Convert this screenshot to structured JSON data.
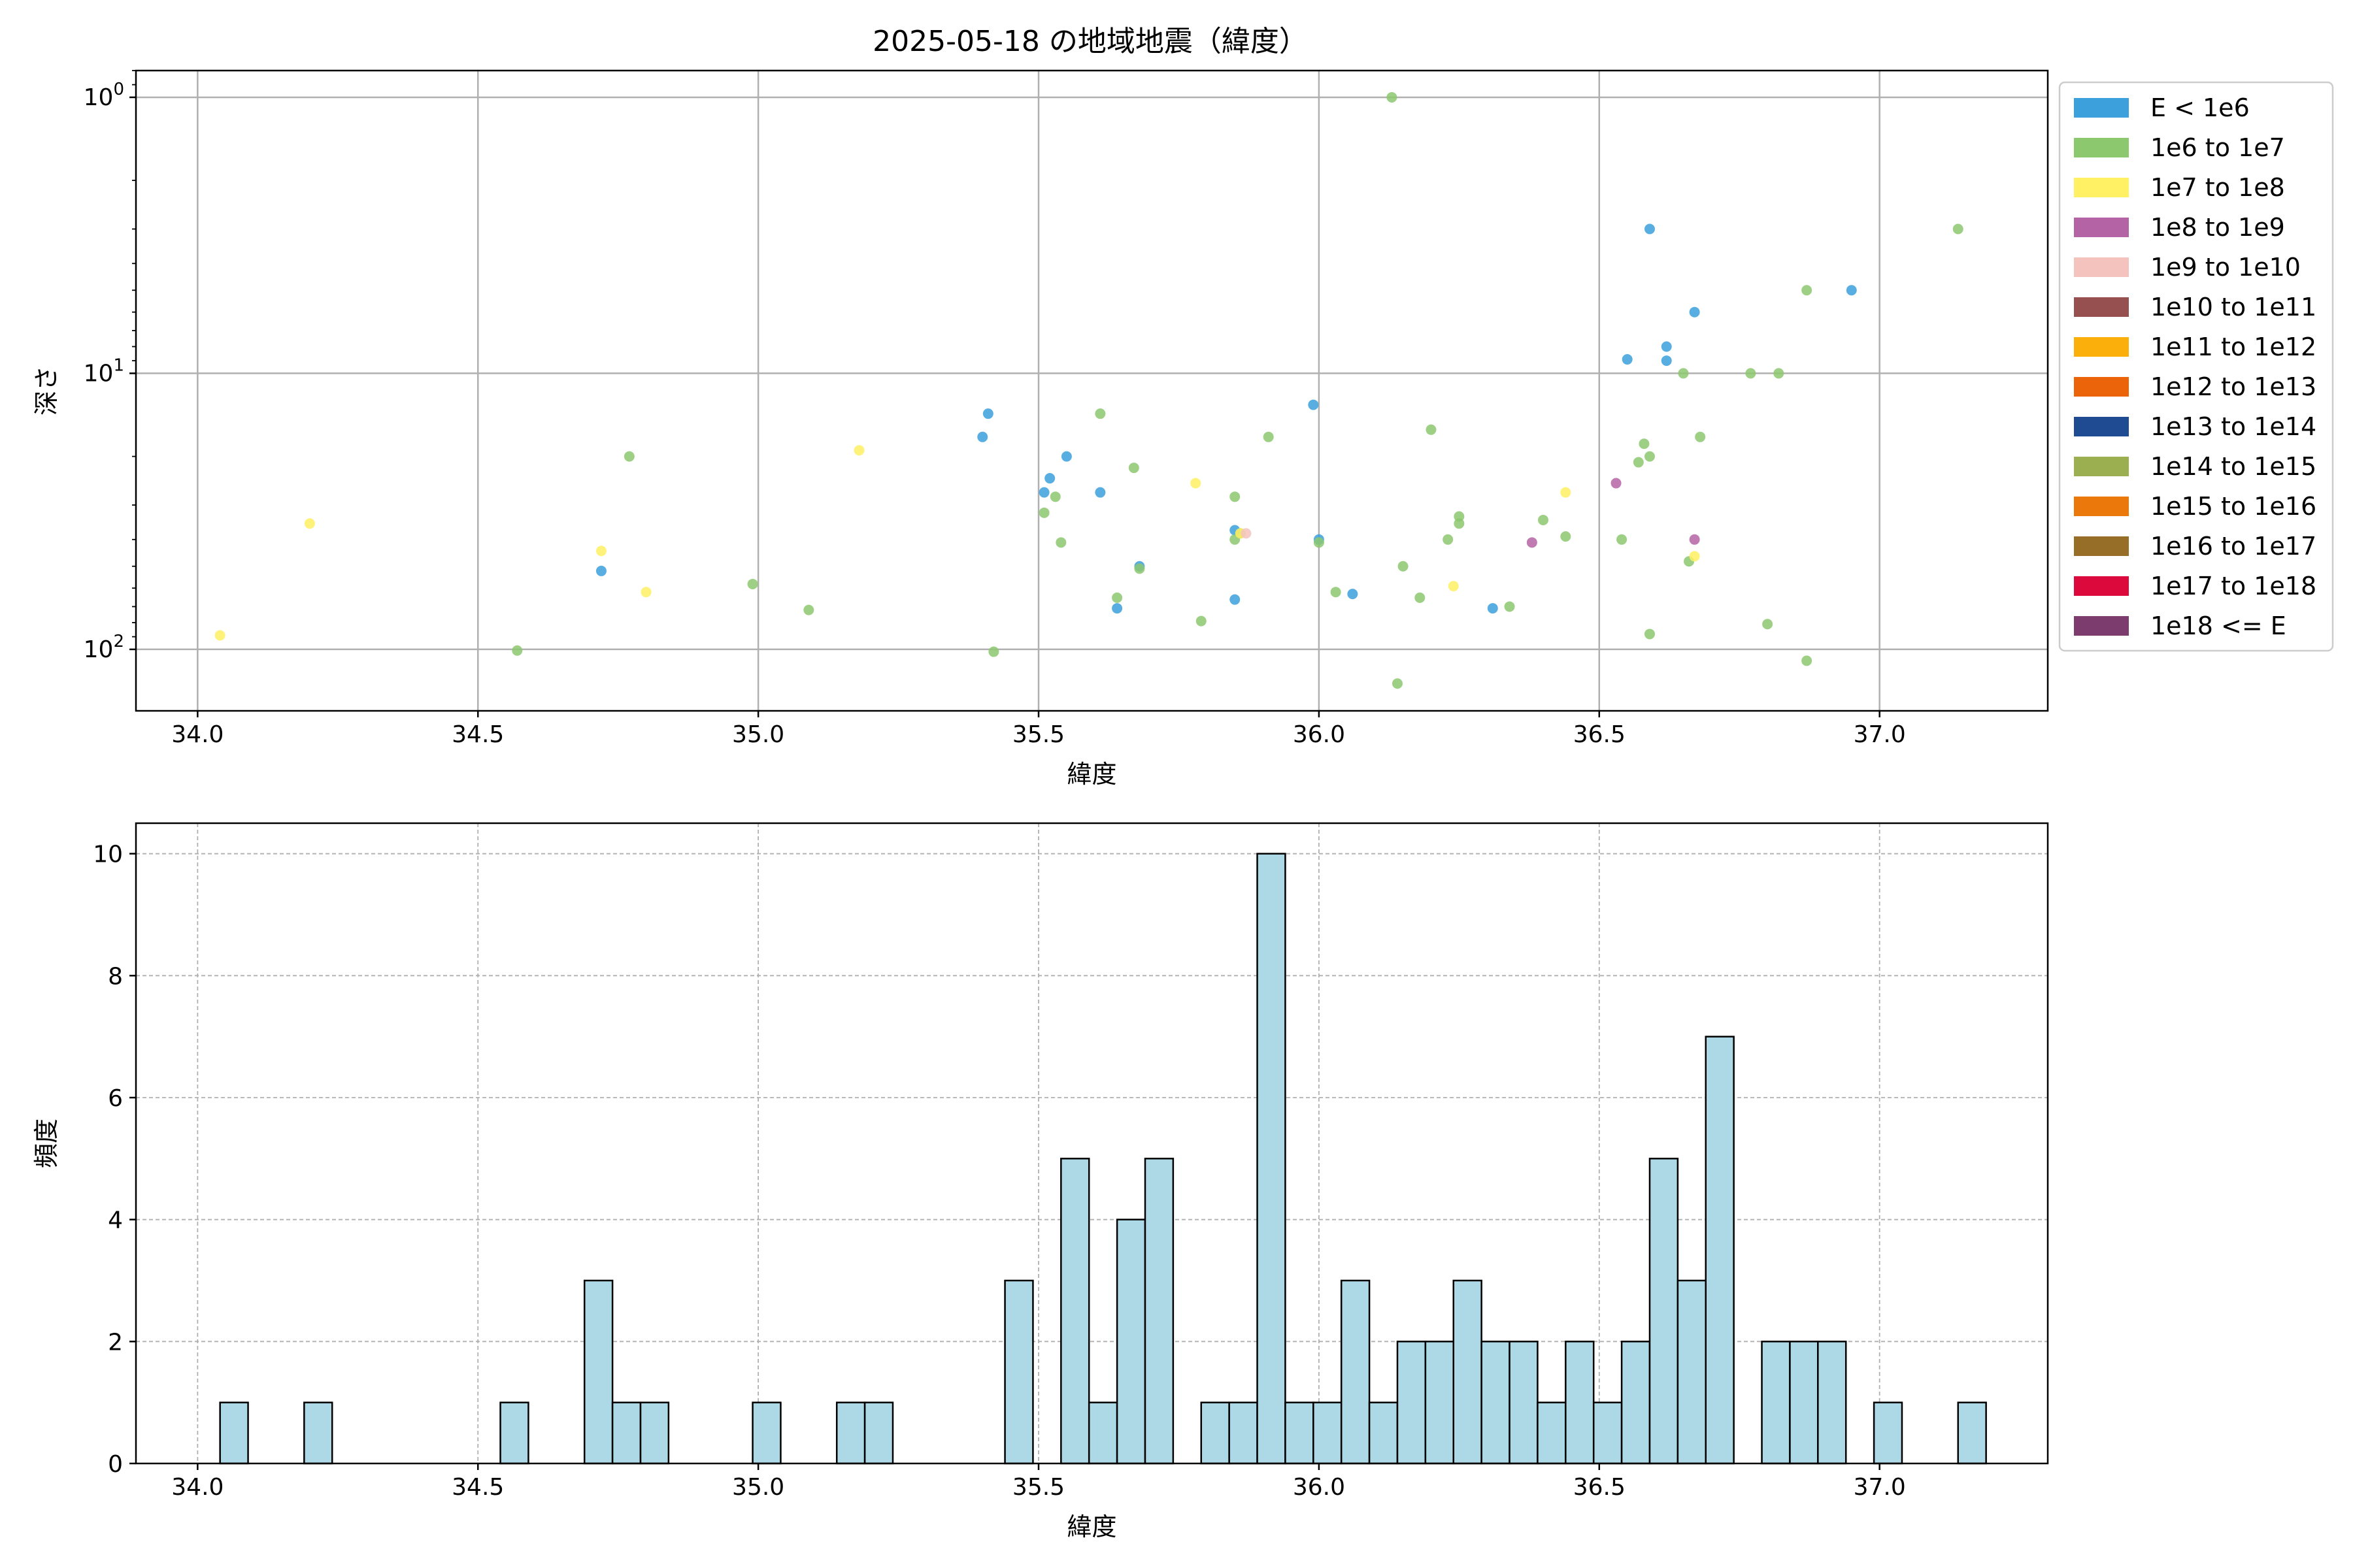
{
  "title": "2025-05-18 の地域地震（緯度）",
  "colors": {
    "hist_fill": "#add8e6",
    "hist_edge": "#000000",
    "grid": "#b0b0b0"
  },
  "chart_data": [
    {
      "type": "scatter",
      "title": "2025-05-18 の地域地震（緯度）",
      "xlabel": "緯度",
      "ylabel": "深さ",
      "xlim": [
        33.89,
        37.3
      ],
      "ylim": [
        167,
        0.8
      ],
      "yscale": "log",
      "y_inverted": true,
      "grid": true,
      "legend_position": "right",
      "xticks": [
        {
          "value": 34.0,
          "label": "34.0"
        },
        {
          "value": 34.5,
          "label": "34.5"
        },
        {
          "value": 35.0,
          "label": "35.0"
        },
        {
          "value": 35.5,
          "label": "35.5"
        },
        {
          "value": 36.0,
          "label": "36.0"
        },
        {
          "value": 36.5,
          "label": "36.5"
        },
        {
          "value": 37.0,
          "label": "37.0"
        }
      ],
      "yticks": [
        {
          "value": 1,
          "base": "10",
          "exp": "0"
        },
        {
          "value": 10,
          "base": "10",
          "exp": "1"
        },
        {
          "value": 100,
          "base": "10",
          "exp": "2"
        }
      ],
      "legend": [
        {
          "label": "E < 1e6",
          "color": "#3ca0dc"
        },
        {
          "label": "1e6 to 1e7",
          "color": "#8cc86e"
        },
        {
          "label": "1e7 to 1e8",
          "color": "#fff064"
        },
        {
          "label": "1e8 to 1e9",
          "color": "#b464a5"
        },
        {
          "label": "1e9 to 1e10",
          "color": "#f5c3be"
        },
        {
          "label": "1e10 to 1e11",
          "color": "#965050"
        },
        {
          "label": "1e11 to 1e12",
          "color": "#faaf0a"
        },
        {
          "label": "1e12 to 1e13",
          "color": "#eb640a"
        },
        {
          "label": "1e13 to 1e14",
          "color": "#1e4b91"
        },
        {
          "label": "1e14 to 1e15",
          "color": "#9baf50"
        },
        {
          "label": "1e15 to 1e16",
          "color": "#eb780a"
        },
        {
          "label": "1e16 to 1e17",
          "color": "#966e28"
        },
        {
          "label": "1e17 to 1e18",
          "color": "#dc0a3c"
        },
        {
          "label": "1e18 <= E",
          "color": "#7d3c6e"
        }
      ],
      "series": [
        {
          "name": "E < 1e6",
          "points": [
            [
              34.72,
              52
            ],
            [
              35.4,
              17
            ],
            [
              35.41,
              14
            ],
            [
              35.51,
              27
            ],
            [
              35.52,
              24
            ],
            [
              35.55,
              20
            ],
            [
              35.61,
              27
            ],
            [
              35.64,
              71
            ],
            [
              35.68,
              50
            ],
            [
              35.85,
              37
            ],
            [
              35.85,
              66
            ],
            [
              35.99,
              13
            ],
            [
              36.0,
              40
            ],
            [
              36.06,
              63
            ],
            [
              36.31,
              71
            ],
            [
              36.55,
              8.9
            ],
            [
              36.59,
              3.0
            ],
            [
              36.62,
              8.0
            ],
            [
              36.62,
              9.0
            ],
            [
              36.67,
              6.0
            ],
            [
              36.95,
              5.0
            ]
          ]
        },
        {
          "name": "1e6 to 1e7",
          "points": [
            [
              34.57,
              101
            ],
            [
              34.77,
              20
            ],
            [
              34.99,
              58
            ],
            [
              35.09,
              72
            ],
            [
              35.42,
              102
            ],
            [
              35.51,
              32
            ],
            [
              35.53,
              28
            ],
            [
              35.54,
              41
            ],
            [
              35.61,
              14
            ],
            [
              35.64,
              65
            ],
            [
              35.67,
              22
            ],
            [
              35.68,
              51
            ],
            [
              35.79,
              79
            ],
            [
              35.85,
              28
            ],
            [
              35.85,
              40
            ],
            [
              35.86,
              38
            ],
            [
              35.91,
              17
            ],
            [
              36.0,
              41
            ],
            [
              36.03,
              62
            ],
            [
              36.13,
              1.0
            ],
            [
              36.14,
              133
            ],
            [
              36.15,
              50
            ],
            [
              36.18,
              65
            ],
            [
              36.2,
              16
            ],
            [
              36.23,
              40
            ],
            [
              36.25,
              33
            ],
            [
              36.25,
              35
            ],
            [
              36.34,
              70
            ],
            [
              36.4,
              34
            ],
            [
              36.44,
              39
            ],
            [
              36.54,
              40
            ],
            [
              36.57,
              21
            ],
            [
              36.58,
              18
            ],
            [
              36.59,
              88
            ],
            [
              36.59,
              20
            ],
            [
              36.65,
              10
            ],
            [
              36.66,
              48
            ],
            [
              36.68,
              17
            ],
            [
              36.77,
              10
            ],
            [
              36.8,
              81
            ],
            [
              36.82,
              10
            ],
            [
              36.87,
              5.0
            ],
            [
              36.87,
              110
            ],
            [
              37.14,
              3.0
            ]
          ]
        },
        {
          "name": "1e7 to 1e8",
          "points": [
            [
              34.04,
              89
            ],
            [
              34.2,
              35
            ],
            [
              34.72,
              44
            ],
            [
              34.8,
              62
            ],
            [
              35.18,
              19
            ],
            [
              35.78,
              25
            ],
            [
              35.86,
              38
            ],
            [
              36.24,
              59
            ],
            [
              36.44,
              27
            ],
            [
              36.67,
              46
            ]
          ]
        },
        {
          "name": "1e8 to 1e9",
          "points": [
            [
              36.38,
              41
            ],
            [
              36.53,
              25
            ],
            [
              36.67,
              40
            ]
          ]
        },
        {
          "name": "1e9 to 1e10",
          "points": [
            [
              35.87,
              38
            ]
          ]
        }
      ]
    },
    {
      "type": "bar",
      "subtype": "histogram",
      "xlabel": "緯度",
      "ylabel": "頻度",
      "xlim": [
        33.89,
        37.3
      ],
      "ylim": [
        0,
        10.5
      ],
      "grid": true,
      "bin_start": 34.04,
      "bin_width": 0.05,
      "counts": [
        1,
        0,
        0,
        1,
        0,
        0,
        0,
        0,
        0,
        0,
        1,
        0,
        0,
        3,
        1,
        1,
        0,
        0,
        0,
        1,
        0,
        0,
        1,
        1,
        0,
        0,
        0,
        0,
        3,
        0,
        5,
        1,
        4,
        5,
        0,
        1,
        1,
        10,
        1,
        1,
        3,
        1,
        2,
        2,
        3,
        2,
        2,
        1,
        2,
        1,
        2,
        5,
        3,
        7,
        0,
        2,
        2,
        2,
        0,
        1,
        0,
        0,
        1
      ],
      "xticks": [
        {
          "value": 34.0,
          "label": "34.0"
        },
        {
          "value": 34.5,
          "label": "34.5"
        },
        {
          "value": 35.0,
          "label": "35.0"
        },
        {
          "value": 35.5,
          "label": "35.5"
        },
        {
          "value": 36.0,
          "label": "36.0"
        },
        {
          "value": 36.5,
          "label": "36.5"
        },
        {
          "value": 37.0,
          "label": "37.0"
        }
      ],
      "yticks": [
        {
          "value": 0,
          "label": "0"
        },
        {
          "value": 2,
          "label": "2"
        },
        {
          "value": 4,
          "label": "4"
        },
        {
          "value": 6,
          "label": "6"
        },
        {
          "value": 8,
          "label": "8"
        },
        {
          "value": 10,
          "label": "10"
        }
      ]
    }
  ]
}
